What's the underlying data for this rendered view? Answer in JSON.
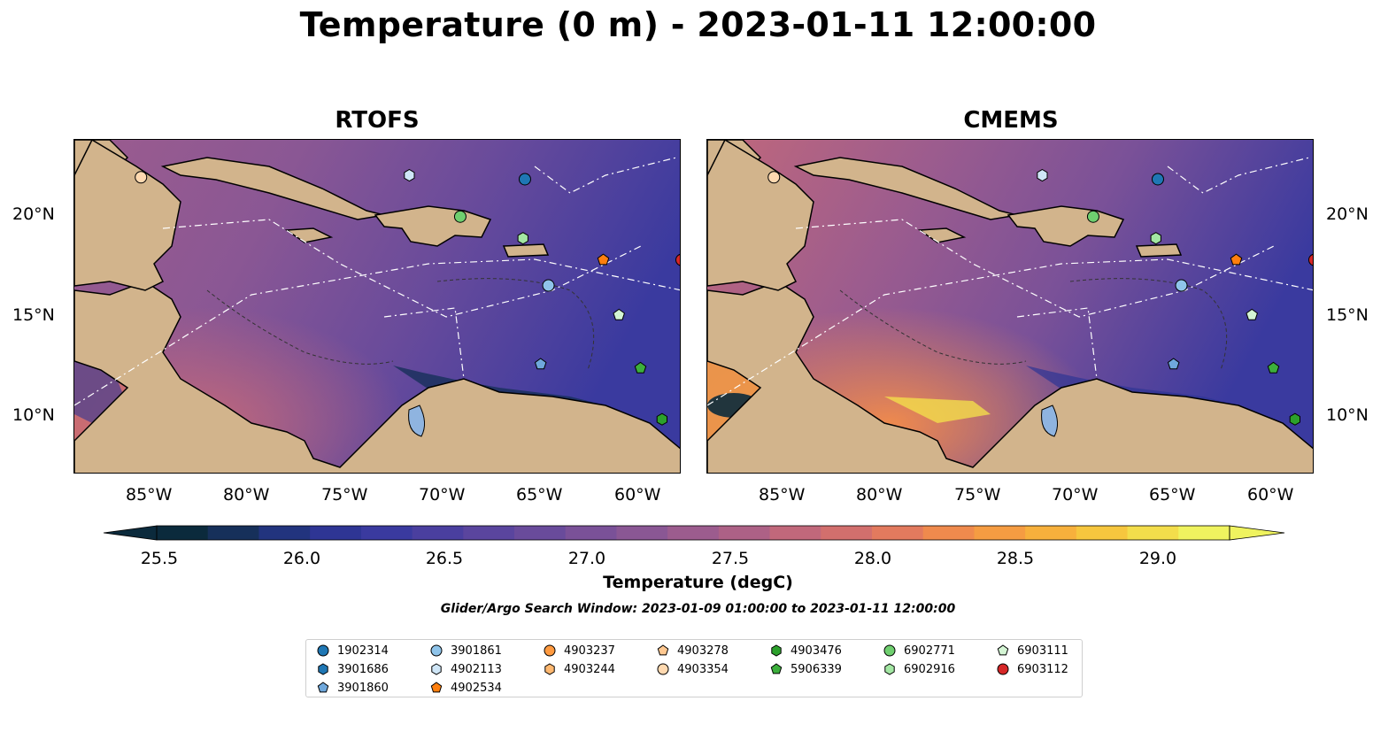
{
  "title": "Temperature (0 m) - 2023-01-11 12:00:00",
  "panels": [
    {
      "title": "RTOFS"
    },
    {
      "title": "CMEMS"
    }
  ],
  "axes": {
    "lon_ticks": [
      "85°W",
      "80°W",
      "75°W",
      "70°W",
      "65°W",
      "60°W"
    ],
    "lat_ticks": [
      "20°N",
      "15°N",
      "10°N"
    ]
  },
  "colorbar": {
    "label": "Temperature (degC)",
    "ticks": [
      "25.5",
      "26.0",
      "26.5",
      "27.0",
      "27.5",
      "28.0",
      "28.5",
      "29.0"
    ],
    "colors": [
      "#0b2a3c",
      "#16305a",
      "#22347e",
      "#2e3594",
      "#3a3a9f",
      "#4a3f9f",
      "#5a459e",
      "#694b9b",
      "#7a5198",
      "#8a5794",
      "#9c5c8e",
      "#ad6186",
      "#c1687b",
      "#d26f6d",
      "#e27a5e",
      "#ef8a4d",
      "#f59c42",
      "#f7b03c",
      "#f6c63e",
      "#f3dd4b",
      "#eff35f"
    ]
  },
  "subtitle": "Glider/Argo Search Window: 2023-01-09 01:00:00 to 2023-01-11 12:00:00",
  "legend": [
    {
      "label": "1902314",
      "marker": "circle",
      "color": "#1f77b4"
    },
    {
      "label": "3901686",
      "marker": "hexagon",
      "color": "#1f77b4"
    },
    {
      "label": "3901860",
      "marker": "pentagon",
      "color": "#6fa8dc"
    },
    {
      "label": "3901861",
      "marker": "circle",
      "color": "#8fc4ea"
    },
    {
      "label": "4902113",
      "marker": "hexagon",
      "color": "#cfe6f7"
    },
    {
      "label": "4902534",
      "marker": "pentagon",
      "color": "#ff7f0e"
    },
    {
      "label": "4903237",
      "marker": "circle",
      "color": "#ff9a40"
    },
    {
      "label": "4903244",
      "marker": "hexagon",
      "color": "#ffb870"
    },
    {
      "label": "4903278",
      "marker": "pentagon",
      "color": "#ffc890"
    },
    {
      "label": "4903354",
      "marker": "circle",
      "color": "#ffd9b0"
    },
    {
      "label": "4903476",
      "marker": "hexagon",
      "color": "#2ca02c"
    },
    {
      "label": "5906339",
      "marker": "pentagon",
      "color": "#3caf3c"
    },
    {
      "label": "6902771",
      "marker": "circle",
      "color": "#6fcf6f"
    },
    {
      "label": "6902916",
      "marker": "hexagon",
      "color": "#a3e7a3"
    },
    {
      "label": "6903111",
      "marker": "pentagon",
      "color": "#d4f5d4"
    },
    {
      "label": "6903112",
      "marker": "circle",
      "color": "#d62728"
    }
  ],
  "map_extent": {
    "lon": [
      -89,
      -58
    ],
    "lat": [
      7,
      24
    ]
  },
  "floats": [
    {
      "id": "4903354",
      "lon": -85.6,
      "lat": 22.1
    },
    {
      "id": "4902113",
      "lon": -71.9,
      "lat": 22.2
    },
    {
      "id": "1902314",
      "lon": -66.0,
      "lat": 22.0
    },
    {
      "id": "6902771",
      "lon": -69.3,
      "lat": 20.1
    },
    {
      "id": "6902916",
      "lon": -66.1,
      "lat": 19.0
    },
    {
      "id": "4902534",
      "lon": -62.0,
      "lat": 17.9
    },
    {
      "id": "3901861",
      "lon": -64.8,
      "lat": 16.6
    },
    {
      "id": "6903111",
      "lon": -61.2,
      "lat": 15.1
    },
    {
      "id": "3901860",
      "lon": -65.2,
      "lat": 12.6
    },
    {
      "id": "5906339",
      "lon": -60.1,
      "lat": 12.4
    },
    {
      "id": "4903476",
      "lon": -59.0,
      "lat": 9.8
    },
    {
      "id": "6903112",
      "lon": -58.0,
      "lat": 17.9
    }
  ]
}
